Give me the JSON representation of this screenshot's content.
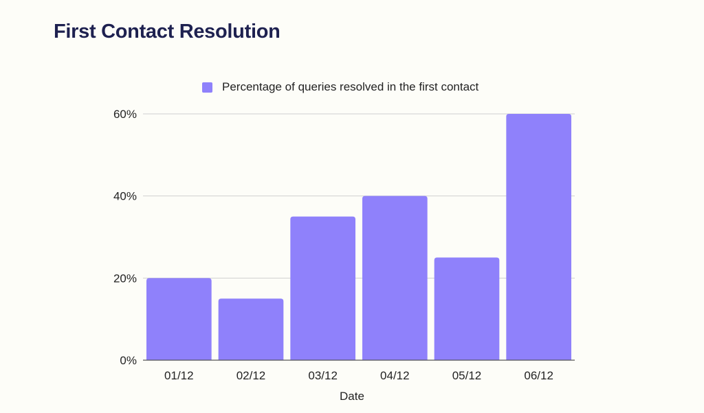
{
  "colors": {
    "bar": "#8f81fb",
    "grid": "#cfcfcf",
    "axis": "#555555",
    "title": "#1e2150",
    "background": "#fdfdf8"
  },
  "chart_data": {
    "type": "bar",
    "title": "First Contact Resolution",
    "xlabel": "Date",
    "ylabel": "",
    "categories": [
      "01/12",
      "02/12",
      "03/12",
      "04/12",
      "05/12",
      "06/12"
    ],
    "series": [
      {
        "name": "Percentage of queries resolved in the first contact",
        "values": [
          20,
          15,
          35,
          40,
          25,
          60
        ]
      }
    ],
    "ylim": [
      0,
      60
    ],
    "yticks": [
      0,
      20,
      40,
      60
    ],
    "ytick_labels": [
      "0%",
      "20%",
      "40%",
      "60%"
    ],
    "grid": true,
    "legend": "top-center"
  }
}
